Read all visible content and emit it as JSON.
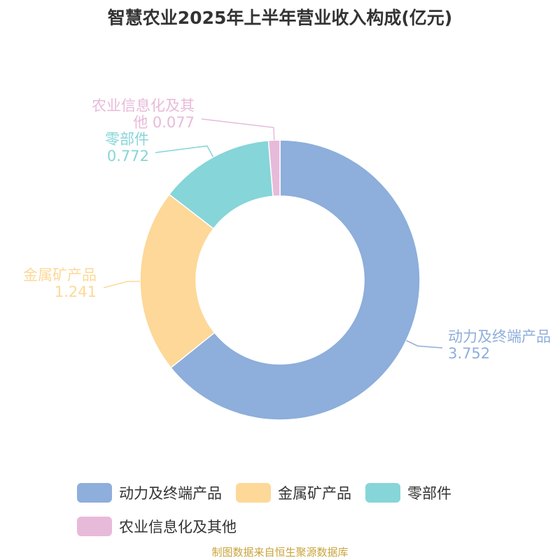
{
  "chart_data": {
    "type": "pie",
    "variant": "donut",
    "title": "智慧农业2025年上半年营业收入构成(亿元)",
    "slices": [
      {
        "label": "动力及终端产品",
        "value": 3.752,
        "value_text": "3.752",
        "color": "#8eaedb"
      },
      {
        "label": "金属矿产品",
        "value": 1.241,
        "value_text": "1.241",
        "color": "#fdd898"
      },
      {
        "label": "零部件",
        "value": 0.772,
        "value_text": "0.772",
        "color": "#86d5d8"
      },
      {
        "label": "农业信息化及其他",
        "value": 0.077,
        "value_text": "0.077",
        "color": "#e8bad9"
      }
    ],
    "legend_position": "bottom"
  },
  "source": "制图数据来自恒生聚源数据库"
}
